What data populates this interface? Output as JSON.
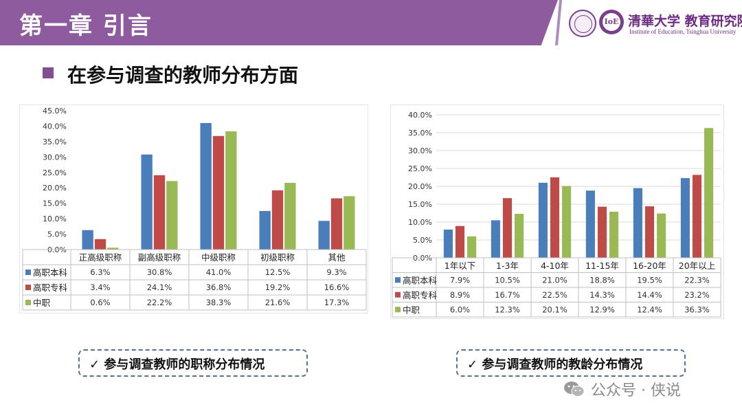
{
  "header": {
    "title": "第一章 引言",
    "institution_cn": "清華大学 教育研究院",
    "institution_en": "Institute of Education, Tsinghua University",
    "band_color": "#8e5b9f"
  },
  "heading": "在参与调查的教师分布方面",
  "captions": {
    "left": "✓ 参与调查教师的职称分布情况",
    "right": "✓ 参与调查教师的教龄分布情况"
  },
  "watermark": {
    "text": "公众号 · 侠说",
    "icon": "wechat-icon"
  },
  "series_colors": [
    "#4a7ebb",
    "#be4b48",
    "#98b954"
  ],
  "chart_data": [
    {
      "type": "bar",
      "ylim": [
        0,
        45
      ],
      "yticks": [
        "0.0%",
        "5.0%",
        "10.0%",
        "15.0%",
        "20.0%",
        "25.0%",
        "30.0%",
        "35.0%",
        "40.0%",
        "45.0%"
      ],
      "categories": [
        "正高级职称",
        "副高级职称",
        "中级职称",
        "初级职称",
        "其他"
      ],
      "series": [
        {
          "name": "高职本科",
          "values": [
            6.3,
            30.8,
            41.0,
            12.5,
            9.3
          ],
          "labels": [
            "6.3%",
            "30.8%",
            "41.0%",
            "12.5%",
            "9.3%"
          ]
        },
        {
          "name": "高职专科",
          "values": [
            3.4,
            24.1,
            36.8,
            19.2,
            16.6
          ],
          "labels": [
            "3.4%",
            "24.1%",
            "36.8%",
            "19.2%",
            "16.6%"
          ]
        },
        {
          "name": "中职",
          "values": [
            0.6,
            22.2,
            38.3,
            21.6,
            17.3
          ],
          "labels": [
            "0.6%",
            "22.2%",
            "38.3%",
            "21.6%",
            "17.3%"
          ]
        }
      ],
      "grid": false,
      "legend": "data-table"
    },
    {
      "type": "bar",
      "ylim": [
        0,
        40
      ],
      "yticks": [
        "0.0%",
        "5.0%",
        "10.0%",
        "15.0%",
        "20.0%",
        "25.0%",
        "30.0%",
        "35.0%",
        "40.0%"
      ],
      "categories": [
        "1年以下",
        "1-3年",
        "4-10年",
        "11-15年",
        "16-20年",
        "20年以上"
      ],
      "series": [
        {
          "name": "高职本科",
          "values": [
            7.9,
            10.5,
            21.0,
            18.8,
            19.5,
            22.3
          ],
          "labels": [
            "7.9%",
            "10.5%",
            "21.0%",
            "18.8%",
            "19.5%",
            "22.3%"
          ]
        },
        {
          "name": "高职专科",
          "values": [
            8.9,
            16.7,
            22.5,
            14.3,
            14.4,
            23.2
          ],
          "labels": [
            "8.9%",
            "16.7%",
            "22.5%",
            "14.3%",
            "14.4%",
            "23.2%"
          ]
        },
        {
          "name": "中职",
          "values": [
            6.0,
            12.3,
            20.1,
            12.9,
            12.4,
            36.3
          ],
          "labels": [
            "6.0%",
            "12.3%",
            "20.1%",
            "12.9%",
            "12.4%",
            "36.3%"
          ]
        }
      ],
      "grid": true,
      "legend": "data-table"
    }
  ]
}
